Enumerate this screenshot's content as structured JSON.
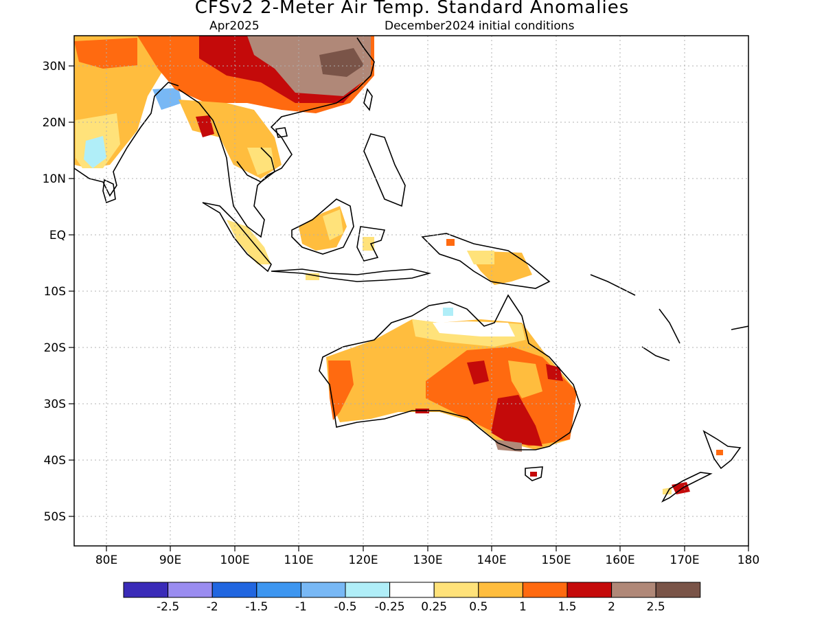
{
  "header": {
    "title": "CFSv2 2-Meter Air Temp. Standard Anomalies",
    "valid_month": "Apr2025",
    "init_conditions": "December2024 initial conditions"
  },
  "axes": {
    "lat_labels": [
      "30N",
      "20N",
      "10N",
      "EQ",
      "10S",
      "20S",
      "30S",
      "40S",
      "50S"
    ],
    "lon_labels": [
      "80E",
      "90E",
      "100E",
      "110E",
      "120E",
      "130E",
      "140E",
      "150E",
      "160E",
      "170E",
      "180"
    ]
  },
  "colorbar": {
    "colors": [
      "#3a2bb8",
      "#9a8cf0",
      "#2166e0",
      "#3d96f0",
      "#78b8f5",
      "#b0eef8",
      "#ffffff",
      "#ffe27a",
      "#ffbd3e",
      "#ff6a10",
      "#c40a0a",
      "#b08878",
      "#7a5448"
    ],
    "labels": [
      "-2.5",
      "-2",
      "-1.5",
      "-1",
      "-0.5",
      "-0.25",
      "0.25",
      "0.5",
      "1",
      "1.5",
      "2",
      "2.5"
    ]
  },
  "palette": {
    "warm_0_5": "#ffe27a",
    "warm_1": "#ffbd3e",
    "warm_1_5": "#ff6a10",
    "warm_2": "#c40a0a",
    "warm_2_5": "#b08878",
    "warm_3": "#7a5448",
    "cool_0_25": "#b0eef8",
    "cool_1": "#78b8f5"
  }
}
